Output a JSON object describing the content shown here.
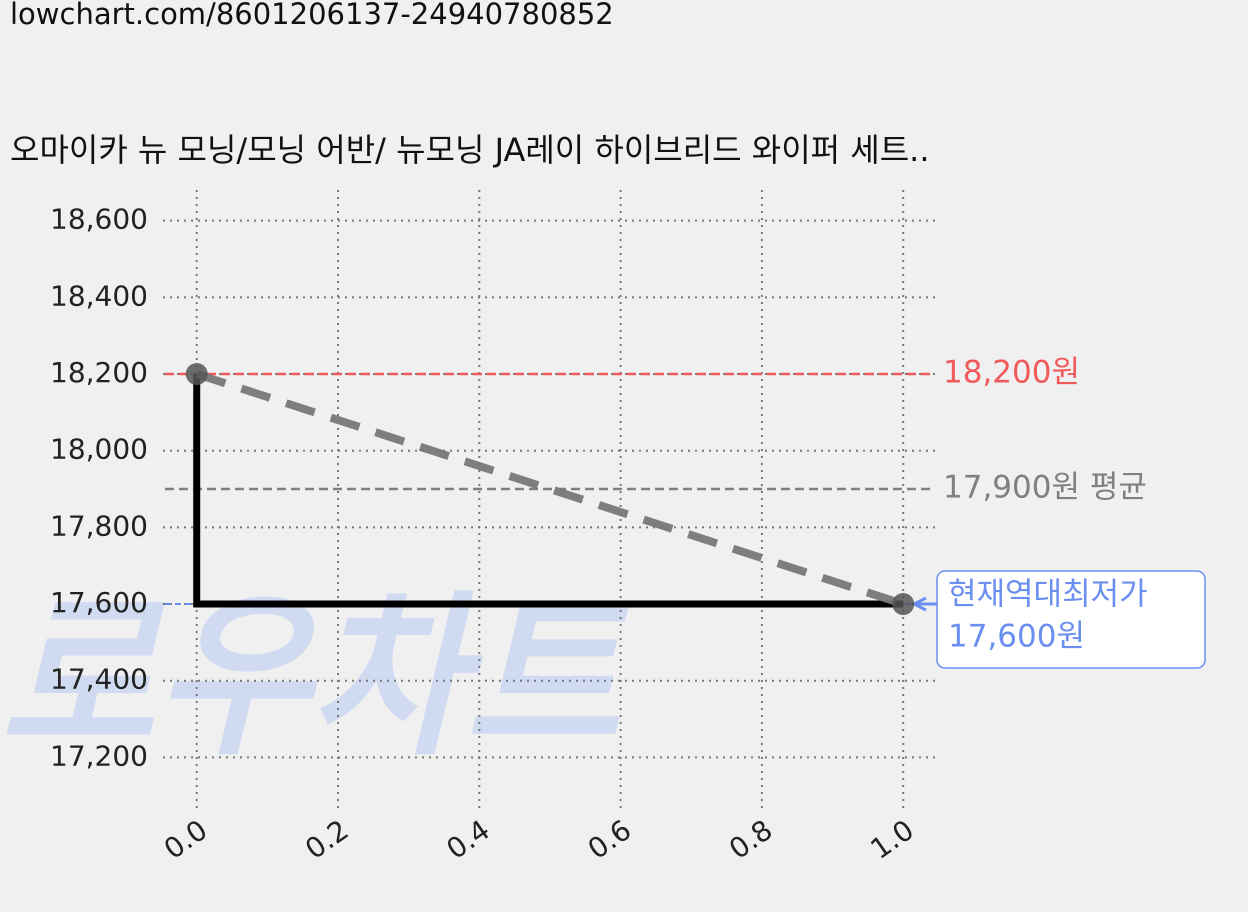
{
  "url": "lowchart.com/8601206137-24940780852",
  "chart_data": {
    "type": "line",
    "title": "오마이카 뉴 모닝/모닝 어반/ 뉴모닝 JA레이 하이브리드 와이퍼 세트..",
    "watermark": "로우차트",
    "x": [
      0,
      1
    ],
    "series": [
      {
        "color": "#777777",
        "style": "dashed",
        "markers": true,
        "values": [
          18200,
          17600
        ]
      },
      {
        "color": "#000000",
        "style": "step",
        "values": [
          18200,
          17600
        ]
      }
    ],
    "hlines": [
      {
        "value": 18200,
        "label": "18,200원",
        "color": "#f05a5a"
      },
      {
        "value": 17900,
        "label": "17,900원 평균",
        "color": "#808080"
      },
      {
        "value": 17600,
        "note": "현재역대최저가",
        "label": "17,600원",
        "color": "#6b8ff0",
        "boxed": true
      }
    ],
    "xlim": [
      -0.035,
      1.045
    ],
    "ylim": [
      17115,
      18680
    ],
    "xticks": [
      {
        "value": 0,
        "label": "0.0"
      },
      0.2,
      0.4,
      0.6,
      0.8,
      {
        "value": 1,
        "label": "1.0"
      }
    ],
    "yticks": [
      {
        "value": 17200,
        "label": "17,200"
      },
      {
        "value": 17400,
        "label": "17,400"
      },
      {
        "value": 17600,
        "label": "17,600"
      },
      {
        "value": 17800,
        "label": "17,800"
      },
      {
        "value": 18000,
        "label": "18,000"
      },
      {
        "value": 18200,
        "label": "18,200"
      },
      {
        "value": 18400,
        "label": "18,400"
      },
      {
        "value": 18600,
        "label": "18,600"
      }
    ],
    "grid": true
  }
}
